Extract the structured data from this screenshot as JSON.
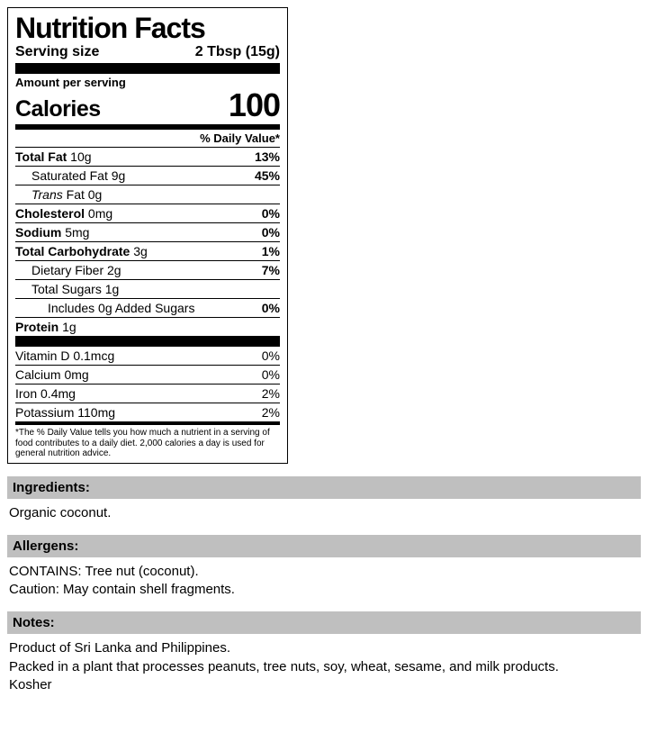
{
  "panel": {
    "title": "Nutrition Facts",
    "serving_label": "Serving size",
    "serving_value": "2 Tbsp (15g)",
    "amount_per": "Amount per serving",
    "calories_label": "Calories",
    "calories_value": "100",
    "dv_header": "% Daily Value*",
    "nutrients_primary": [
      {
        "label": "Total Fat",
        "amount": "10g",
        "dv": "13%",
        "bold": true,
        "indent": 0
      },
      {
        "label": "Saturated Fat",
        "amount": "9g",
        "dv": "45%",
        "bold": false,
        "indent": 1
      },
      {
        "label_html": "<i>Trans</i> Fat",
        "amount": "0g",
        "dv": "",
        "bold": false,
        "indent": 1
      },
      {
        "label": "Cholesterol",
        "amount": "0mg",
        "dv": "0%",
        "bold": true,
        "indent": 0
      },
      {
        "label": "Sodium",
        "amount": "5mg",
        "dv": "0%",
        "bold": true,
        "indent": 0
      },
      {
        "label": "Total Carbohydrate",
        "amount": "3g",
        "dv": "1%",
        "bold": true,
        "indent": 0
      },
      {
        "label": "Dietary Fiber",
        "amount": "2g",
        "dv": "7%",
        "bold": false,
        "indent": 1
      },
      {
        "label": "Total Sugars",
        "amount": "1g",
        "dv": "",
        "bold": false,
        "indent": 1
      },
      {
        "label": "Includes 0g Added Sugars",
        "amount": "",
        "dv": "0%",
        "bold": false,
        "indent": 2
      },
      {
        "label": "Protein",
        "amount": "1g",
        "dv": "",
        "bold": true,
        "indent": 0
      }
    ],
    "nutrients_vitamins": [
      {
        "label": "Vitamin D",
        "amount": "0.1mcg",
        "dv": "0%"
      },
      {
        "label": "Calcium",
        "amount": "0mg",
        "dv": "0%"
      },
      {
        "label": "Iron",
        "amount": "0.4mg",
        "dv": "2%"
      },
      {
        "label": "Potassium",
        "amount": "110mg",
        "dv": "2%"
      }
    ],
    "footnote": "*The % Daily Value tells you how much a nutrient in a serving of food contributes to a daily diet. 2,000 calories a day is used for general nutrition advice."
  },
  "sections": {
    "ingredients": {
      "heading": "Ingredients:",
      "body": "Organic coconut."
    },
    "allergens": {
      "heading": "Allergens:",
      "line1": "CONTAINS: Tree nut (coconut).",
      "line2": "Caution: May contain shell fragments."
    },
    "notes": {
      "heading": "Notes:",
      "line1": "Product of Sri Lanka and Philippines.",
      "line2": "Packed in a plant that processes peanuts, tree nuts, soy, wheat, sesame, and milk products.",
      "line3": "Kosher"
    }
  },
  "colors": {
    "section_bg": "#bfbfbf",
    "border": "#000000",
    "background": "#ffffff"
  }
}
